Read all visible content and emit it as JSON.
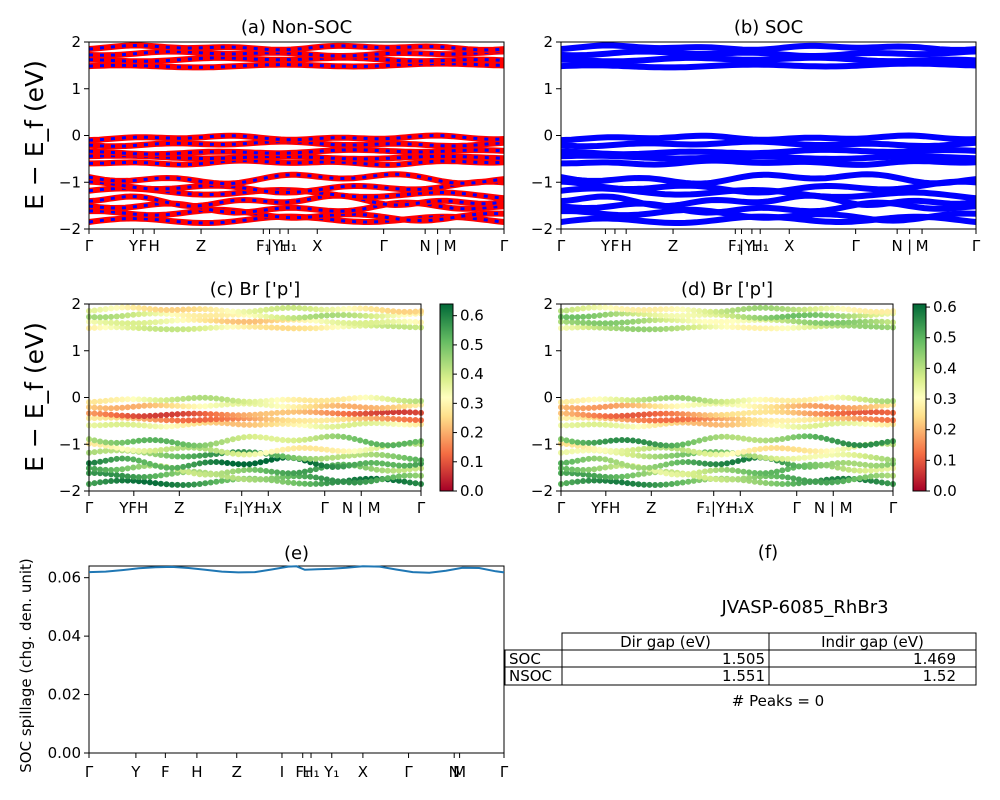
{
  "chart_data": [
    {
      "id": "a",
      "type": "line",
      "title": "(a) Non-SOC",
      "ylabel": "E − E_f (eV)",
      "ylim": [
        -2,
        2
      ],
      "yticks": [
        "−2",
        "−1",
        "0",
        "1",
        "2"
      ],
      "xticks": [
        "Γ",
        "Y",
        "F",
        "H",
        "Z",
        "F₁",
        "|",
        "Y₁",
        "H₁",
        "X",
        "Γ",
        "N",
        "|",
        "M",
        "Γ"
      ],
      "series": [
        {
          "color": "#ff0000"
        },
        {
          "color": "#0000ff"
        }
      ],
      "bands_eV": [
        -1.85,
        -1.7,
        -1.55,
        -1.4,
        -1.25,
        -1.1,
        -0.92,
        -0.58,
        -0.45,
        -0.35,
        -0.18,
        -0.05,
        1.5,
        1.62,
        1.75,
        1.88
      ]
    },
    {
      "id": "b",
      "type": "line",
      "title": "(b) SOC",
      "ylim": [
        -2,
        2
      ],
      "yticks": [
        "−2",
        "−1",
        "0",
        "1",
        "2"
      ],
      "xticks": [
        "Γ",
        "Y",
        "F",
        "H",
        "Z",
        "F₁",
        "|",
        "Y₁",
        "H₁",
        "X",
        "Γ",
        "N",
        "|",
        "M",
        "Γ"
      ],
      "series": [
        {
          "color": "#0000ff"
        }
      ],
      "bands_eV": [
        -1.85,
        -1.7,
        -1.55,
        -1.4,
        -1.25,
        -1.1,
        -0.92,
        -0.58,
        -0.45,
        -0.35,
        -0.18,
        -0.05,
        1.5,
        1.62,
        1.75,
        1.88
      ]
    },
    {
      "id": "c",
      "type": "scatter",
      "title": "(c)  Br ['p']",
      "ylabel": "E − E_f (eV)",
      "ylim": [
        -2,
        2
      ],
      "yticks": [
        "−2",
        "−1",
        "0",
        "1",
        "2"
      ],
      "xticks": [
        "Γ",
        "YFH",
        "Z",
        "F₁|Y₁",
        "H₁X",
        "Γ",
        "N | M",
        "Γ"
      ],
      "colorbar": {
        "range": [
          0,
          0.64
        ],
        "ticks": [
          "0.0",
          "0.1",
          "0.2",
          "0.3",
          "0.4",
          "0.5",
          "0.6"
        ]
      },
      "bands_eV": [
        -1.85,
        -1.7,
        -1.55,
        -1.4,
        -1.25,
        -1.1,
        -0.92,
        -0.58,
        -0.45,
        -0.35,
        -0.18,
        -0.05,
        1.5,
        1.62,
        1.75,
        1.88
      ],
      "band_weights": [
        0.55,
        0.5,
        0.48,
        0.6,
        0.5,
        0.35,
        0.45,
        0.3,
        0.2,
        0.15,
        0.28,
        0.35,
        0.33,
        0.3,
        0.36,
        0.32
      ]
    },
    {
      "id": "d",
      "type": "scatter",
      "title": "(d) Br ['p']",
      "ylim": [
        -2,
        2
      ],
      "yticks": [
        "−2",
        "−1",
        "0",
        "1",
        "2"
      ],
      "xticks": [
        "Γ",
        "YFH",
        "Z",
        "F₁|Y₁",
        "H₁X",
        "Γ",
        "N | M",
        "Γ"
      ],
      "colorbar": {
        "range": [
          0,
          0.61
        ],
        "ticks": [
          "0.0",
          "0.1",
          "0.2",
          "0.3",
          "0.4",
          "0.5",
          "0.6"
        ]
      },
      "bands_eV": [
        -1.85,
        -1.7,
        -1.55,
        -1.4,
        -1.25,
        -1.1,
        -0.92,
        -0.58,
        -0.45,
        -0.35,
        -0.18,
        -0.05,
        1.5,
        1.62,
        1.75,
        1.88
      ],
      "band_weights": [
        0.5,
        0.45,
        0.42,
        0.5,
        0.4,
        0.32,
        0.48,
        0.28,
        0.2,
        0.18,
        0.25,
        0.35,
        0.36,
        0.38,
        0.4,
        0.35
      ]
    },
    {
      "id": "e",
      "type": "line",
      "title": "(e)",
      "ylabel": "SOC spillage (chg. den. unit)",
      "ylim": [
        0,
        0.064
      ],
      "yticks": [
        "0.00",
        "0.02",
        "0.04",
        "0.06"
      ],
      "xticks": [
        "Γ",
        "Y",
        "F",
        "H",
        "Z",
        "I",
        "F₁",
        "H₁",
        "Y₁",
        "X",
        "Γ",
        "N",
        "M",
        "Γ"
      ],
      "series": [
        {
          "color": "#1f77b4",
          "x": [
            0,
            0.04,
            0.08,
            0.12,
            0.16,
            0.2,
            0.24,
            0.28,
            0.32,
            0.36,
            0.4,
            0.44,
            0.48,
            0.5,
            0.52,
            0.55,
            0.58,
            0.62,
            0.66,
            0.7,
            0.74,
            0.78,
            0.82,
            0.86,
            0.9,
            0.94,
            0.98,
            1.0
          ],
          "y": [
            0.0619,
            0.0621,
            0.0626,
            0.0632,
            0.0636,
            0.0637,
            0.0633,
            0.0627,
            0.0621,
            0.0618,
            0.0619,
            0.0628,
            0.0638,
            0.0639,
            0.0627,
            0.0629,
            0.063,
            0.0634,
            0.0639,
            0.0638,
            0.0628,
            0.0619,
            0.0617,
            0.0624,
            0.0634,
            0.0633,
            0.0622,
            0.0618
          ]
        }
      ]
    },
    {
      "id": "f",
      "type": "table",
      "title": "(f)",
      "material": "JVASP-6085_RhBr3",
      "columns": [
        "Dir gap (eV)",
        "Indir gap (eV)"
      ],
      "rows": [
        {
          "label": "SOC",
          "dir": "1.505",
          "indir": "1.469"
        },
        {
          "label": "NSOC",
          "dir": "1.551",
          "indir": "1.52"
        }
      ],
      "peaks": "# Peaks = 0"
    }
  ]
}
